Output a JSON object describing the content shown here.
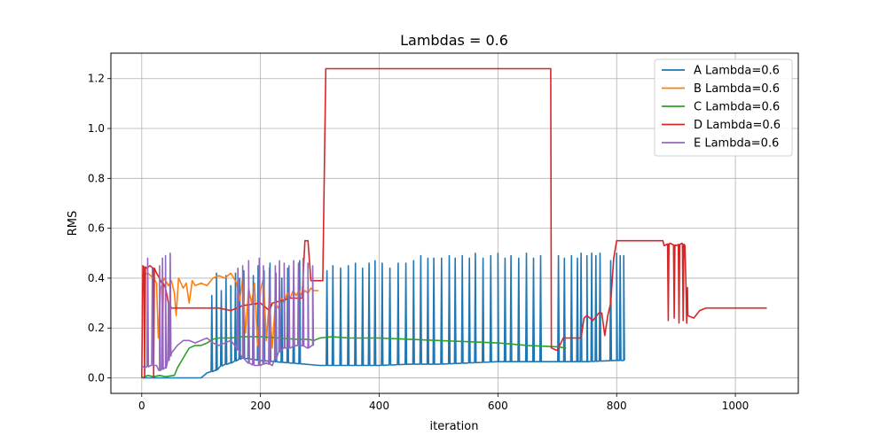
{
  "chart_data": {
    "type": "line",
    "title": "Lambdas = 0.6",
    "xlabel": "iteration",
    "ylabel": "RMS",
    "xlim": [
      -52,
      1106
    ],
    "ylim": [
      -0.062,
      1.302
    ],
    "x_ticks": [
      0,
      200,
      400,
      600,
      800,
      1000
    ],
    "y_ticks": [
      0.0,
      0.2,
      0.4,
      0.6,
      0.8,
      1.0,
      1.2
    ],
    "x_tick_labels": [
      "0",
      "200",
      "400",
      "600",
      "800",
      "1000"
    ],
    "y_tick_labels": [
      "0.0",
      "0.2",
      "0.4",
      "0.6",
      "0.8",
      "1.0",
      "1.2"
    ],
    "grid": true,
    "legend_position": "top-right",
    "series": [
      {
        "name": "A Lambda=0.6",
        "color": "#1f77b4",
        "points": [
          [
            0,
            0.0
          ],
          [
            100,
            0.0
          ],
          [
            110,
            0.02
          ],
          [
            125,
            0.03
          ],
          [
            135,
            0.05
          ],
          [
            150,
            0.06
          ],
          [
            170,
            0.08
          ],
          [
            200,
            0.07
          ],
          [
            250,
            0.06
          ],
          [
            300,
            0.05
          ],
          [
            350,
            0.05
          ],
          [
            400,
            0.05
          ],
          [
            450,
            0.055
          ],
          [
            500,
            0.055
          ],
          [
            550,
            0.06
          ],
          [
            600,
            0.065
          ],
          [
            650,
            0.065
          ],
          [
            700,
            0.065
          ],
          [
            750,
            0.065
          ],
          [
            800,
            0.07
          ],
          [
            812,
            0.07
          ]
        ],
        "spikes": [
          [
            118,
            0.33
          ],
          [
            126,
            0.42
          ],
          [
            134,
            0.35
          ],
          [
            142,
            0.41
          ],
          [
            150,
            0.37
          ],
          [
            158,
            0.42
          ],
          [
            165,
            0.4
          ],
          [
            172,
            0.43
          ],
          [
            180,
            0.34
          ],
          [
            188,
            0.41
          ],
          [
            196,
            0.45
          ],
          [
            206,
            0.43
          ],
          [
            216,
            0.46
          ],
          [
            226,
            0.42
          ],
          [
            236,
            0.4
          ],
          [
            246,
            0.44
          ],
          [
            256,
            0.41
          ],
          [
            266,
            0.47
          ],
          [
            312,
            0.43
          ],
          [
            322,
            0.45
          ],
          [
            335,
            0.44
          ],
          [
            348,
            0.45
          ],
          [
            360,
            0.46
          ],
          [
            372,
            0.44
          ],
          [
            383,
            0.46
          ],
          [
            393,
            0.47
          ],
          [
            405,
            0.46
          ],
          [
            418,
            0.44
          ],
          [
            432,
            0.46
          ],
          [
            445,
            0.46
          ],
          [
            458,
            0.47
          ],
          [
            470,
            0.49
          ],
          [
            482,
            0.48
          ],
          [
            492,
            0.48
          ],
          [
            505,
            0.48
          ],
          [
            518,
            0.49
          ],
          [
            528,
            0.48
          ],
          [
            540,
            0.49
          ],
          [
            552,
            0.48
          ],
          [
            562,
            0.5
          ],
          [
            575,
            0.48
          ],
          [
            588,
            0.49
          ],
          [
            600,
            0.5
          ],
          [
            612,
            0.48
          ],
          [
            622,
            0.49
          ],
          [
            635,
            0.48
          ],
          [
            648,
            0.5
          ],
          [
            660,
            0.48
          ],
          [
            672,
            0.49
          ],
          [
            702,
            0.49
          ],
          [
            712,
            0.48
          ],
          [
            724,
            0.49
          ],
          [
            734,
            0.48
          ],
          [
            740,
            0.5
          ],
          [
            750,
            0.49
          ],
          [
            758,
            0.5
          ],
          [
            765,
            0.49
          ],
          [
            772,
            0.5
          ],
          [
            790,
            0.47
          ],
          [
            800,
            0.5
          ],
          [
            806,
            0.49
          ],
          [
            812,
            0.49
          ]
        ]
      },
      {
        "name": "B Lambda=0.6",
        "color": "#ff7f0e",
        "points": [
          [
            0,
            0.41
          ],
          [
            10,
            0.42
          ],
          [
            20,
            0.4
          ],
          [
            25,
            0.38
          ],
          [
            28,
            0.16
          ],
          [
            32,
            0.36
          ],
          [
            38,
            0.4
          ],
          [
            45,
            0.37
          ],
          [
            50,
            0.39
          ],
          [
            55,
            0.34
          ],
          [
            58,
            0.25
          ],
          [
            62,
            0.4
          ],
          [
            70,
            0.36
          ],
          [
            75,
            0.38
          ],
          [
            80,
            0.3
          ],
          [
            85,
            0.39
          ],
          [
            90,
            0.37
          ],
          [
            100,
            0.38
          ],
          [
            110,
            0.37
          ],
          [
            120,
            0.4
          ],
          [
            130,
            0.41
          ],
          [
            140,
            0.4
          ],
          [
            150,
            0.42
          ],
          [
            160,
            0.38
          ],
          [
            165,
            0.31
          ],
          [
            170,
            0.4
          ],
          [
            175,
            0.18
          ],
          [
            180,
            0.36
          ],
          [
            185,
            0.3
          ],
          [
            190,
            0.38
          ],
          [
            195,
            0.13
          ],
          [
            200,
            0.35
          ],
          [
            205,
            0.4
          ],
          [
            210,
            0.15
          ],
          [
            215,
            0.32
          ],
          [
            220,
            0.12
          ],
          [
            225,
            0.3
          ],
          [
            230,
            0.28
          ],
          [
            235,
            0.32
          ],
          [
            240,
            0.3
          ],
          [
            245,
            0.34
          ],
          [
            250,
            0.32
          ],
          [
            255,
            0.35
          ],
          [
            260,
            0.33
          ],
          [
            265,
            0.35
          ],
          [
            270,
            0.33
          ],
          [
            275,
            0.35
          ],
          [
            280,
            0.34
          ],
          [
            285,
            0.36
          ],
          [
            290,
            0.35
          ],
          [
            298,
            0.35
          ]
        ]
      },
      {
        "name": "C Lambda=0.6",
        "color": "#2ca02c",
        "points": [
          [
            0,
            0.0
          ],
          [
            10,
            0.01
          ],
          [
            20,
            0.005
          ],
          [
            30,
            0.01
          ],
          [
            40,
            0.005
          ],
          [
            55,
            0.01
          ],
          [
            60,
            0.04
          ],
          [
            70,
            0.08
          ],
          [
            80,
            0.12
          ],
          [
            90,
            0.13
          ],
          [
            100,
            0.13
          ],
          [
            110,
            0.14
          ],
          [
            120,
            0.155
          ],
          [
            130,
            0.16
          ],
          [
            150,
            0.16
          ],
          [
            170,
            0.165
          ],
          [
            200,
            0.165
          ],
          [
            230,
            0.16
          ],
          [
            260,
            0.155
          ],
          [
            280,
            0.155
          ],
          [
            290,
            0.15
          ],
          [
            300,
            0.16
          ],
          [
            320,
            0.165
          ],
          [
            350,
            0.16
          ],
          [
            400,
            0.16
          ],
          [
            450,
            0.155
          ],
          [
            500,
            0.15
          ],
          [
            550,
            0.145
          ],
          [
            600,
            0.14
          ],
          [
            650,
            0.13
          ],
          [
            700,
            0.125
          ],
          [
            715,
            0.12
          ]
        ]
      },
      {
        "name": "D Lambda=0.6",
        "color": "#d62728",
        "points": [
          [
            0,
            0.0
          ],
          [
            2,
            0.45
          ],
          [
            8,
            0.44
          ],
          [
            14,
            0.45
          ],
          [
            20,
            0.44
          ],
          [
            25,
            0.42
          ],
          [
            30,
            0.4
          ],
          [
            35,
            0.38
          ],
          [
            40,
            0.36
          ],
          [
            45,
            0.3
          ],
          [
            50,
            0.28
          ],
          [
            60,
            0.28
          ],
          [
            80,
            0.28
          ],
          [
            100,
            0.28
          ],
          [
            130,
            0.28
          ],
          [
            150,
            0.27
          ],
          [
            170,
            0.29
          ],
          [
            200,
            0.3
          ],
          [
            215,
            0.27
          ],
          [
            220,
            0.3
          ],
          [
            250,
            0.32
          ],
          [
            270,
            0.32
          ],
          [
            275,
            0.55
          ],
          [
            280,
            0.55
          ],
          [
            285,
            0.39
          ],
          [
            305,
            0.39
          ],
          [
            310,
            1.24
          ],
          [
            450,
            1.24
          ],
          [
            689,
            1.24
          ],
          [
            690,
            0.12
          ],
          [
            700,
            0.11
          ],
          [
            710,
            0.16
          ],
          [
            740,
            0.16
          ],
          [
            745,
            0.24
          ],
          [
            750,
            0.25
          ],
          [
            760,
            0.23
          ],
          [
            770,
            0.26
          ],
          [
            775,
            0.26
          ],
          [
            780,
            0.17
          ],
          [
            785,
            0.25
          ],
          [
            790,
            0.3
          ],
          [
            795,
            0.48
          ],
          [
            800,
            0.55
          ],
          [
            830,
            0.55
          ],
          [
            878,
            0.55
          ],
          [
            880,
            0.53
          ],
          [
            890,
            0.54
          ],
          [
            900,
            0.53
          ],
          [
            910,
            0.54
          ],
          [
            915,
            0.53
          ],
          [
            920,
            0.25
          ],
          [
            930,
            0.24
          ],
          [
            940,
            0.27
          ],
          [
            950,
            0.28
          ],
          [
            1000,
            0.28
          ],
          [
            1053,
            0.28
          ]
        ],
        "spikes": [
          [
            5,
            0.0
          ],
          [
            20,
            0.0
          ],
          [
            35,
            0.08
          ],
          [
            887,
            0.23
          ],
          [
            897,
            0.24
          ],
          [
            905,
            0.22
          ],
          [
            912,
            0.23
          ],
          [
            918,
            0.22
          ]
        ]
      },
      {
        "name": "E Lambda=0.6",
        "color": "#9467bd",
        "points": [
          [
            0,
            0.05
          ],
          [
            5,
            0.04
          ],
          [
            15,
            0.05
          ],
          [
            25,
            0.05
          ],
          [
            30,
            0.03
          ],
          [
            40,
            0.04
          ],
          [
            50,
            0.1
          ],
          [
            60,
            0.13
          ],
          [
            70,
            0.15
          ],
          [
            80,
            0.15
          ],
          [
            90,
            0.14
          ],
          [
            100,
            0.15
          ],
          [
            110,
            0.16
          ],
          [
            120,
            0.14
          ],
          [
            130,
            0.13
          ],
          [
            140,
            0.14
          ],
          [
            150,
            0.15
          ],
          [
            160,
            0.12
          ],
          [
            170,
            0.08
          ],
          [
            180,
            0.06
          ],
          [
            190,
            0.05
          ],
          [
            200,
            0.05
          ],
          [
            210,
            0.06
          ],
          [
            220,
            0.05
          ],
          [
            230,
            0.1
          ],
          [
            240,
            0.12
          ],
          [
            250,
            0.12
          ],
          [
            260,
            0.13
          ],
          [
            270,
            0.13
          ],
          [
            280,
            0.12
          ],
          [
            288,
            0.13
          ]
        ],
        "spikes": [
          [
            10,
            0.48
          ],
          [
            18,
            0.44
          ],
          [
            30,
            0.45
          ],
          [
            35,
            0.48
          ],
          [
            40,
            0.49
          ],
          [
            45,
            0.3
          ],
          [
            48,
            0.5
          ],
          [
            162,
            0.44
          ],
          [
            170,
            0.45
          ],
          [
            180,
            0.47
          ],
          [
            188,
            0.36
          ],
          [
            198,
            0.48
          ],
          [
            205,
            0.45
          ],
          [
            215,
            0.44
          ],
          [
            225,
            0.45
          ],
          [
            232,
            0.47
          ],
          [
            240,
            0.46
          ],
          [
            248,
            0.45
          ],
          [
            256,
            0.47
          ],
          [
            264,
            0.46
          ],
          [
            272,
            0.48
          ],
          [
            280,
            0.46
          ],
          [
            288,
            0.45
          ]
        ]
      }
    ]
  }
}
